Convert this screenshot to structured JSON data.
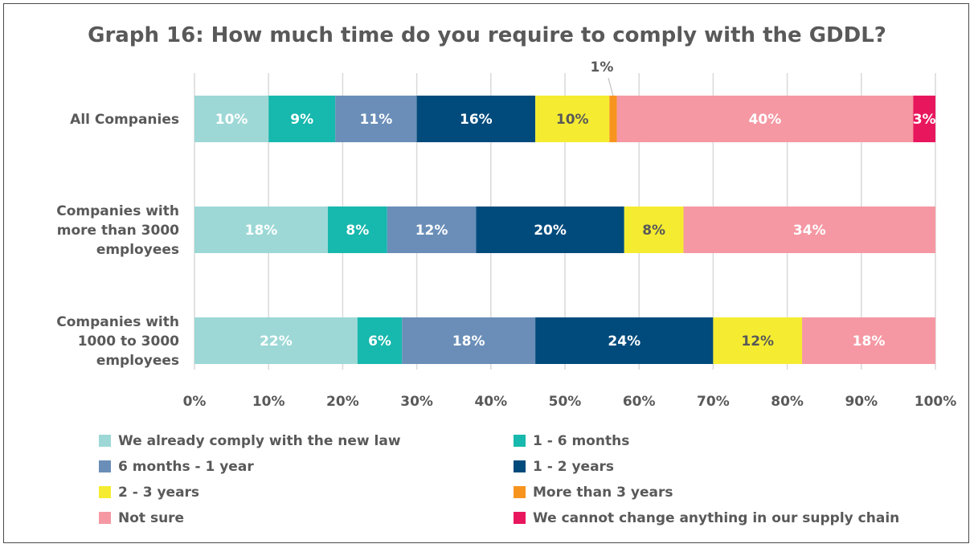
{
  "chart_data": {
    "type": "bar",
    "orientation": "horizontal",
    "stacked": true,
    "title": "Graph 16: How much time do you require to comply with the GDDL?",
    "categories": [
      "All Companies",
      "Companies with more than 3000 employees",
      "Companies with 1000 to 3000 employees"
    ],
    "series": [
      {
        "name": "We already comply with the new law",
        "color": "#9dd8d6",
        "label_color": "#ffffff",
        "values": [
          10,
          18,
          22
        ]
      },
      {
        "name": "1 - 6 months",
        "color": "#17b8ad",
        "label_color": "#ffffff",
        "values": [
          9,
          8,
          6
        ]
      },
      {
        "name": "6 months - 1 year",
        "color": "#6a8eb8",
        "label_color": "#ffffff",
        "values": [
          11,
          12,
          18
        ]
      },
      {
        "name": "1 - 2 years",
        "color": "#004b7c",
        "label_color": "#ffffff",
        "values": [
          16,
          20,
          24
        ]
      },
      {
        "name": "2 - 3 years",
        "color": "#f5ec31",
        "label_color": "#595959",
        "values": [
          10,
          8,
          12
        ]
      },
      {
        "name": "More than 3 years",
        "color": "#f7941e",
        "label_color": "#595959",
        "values": [
          1,
          0,
          0
        ]
      },
      {
        "name": "Not sure",
        "color": "#f598a3",
        "label_color": "#ffffff",
        "values": [
          40,
          34,
          18
        ]
      },
      {
        "name": "We cannot change anything in our supply chain",
        "color": "#e8175d",
        "label_color": "#ffffff",
        "values": [
          3,
          0,
          0
        ]
      }
    ],
    "callout": {
      "text": "1%",
      "category_index": 0,
      "series_index": 5
    },
    "xlim": [
      0,
      100
    ],
    "xticks": [
      "0%",
      "10%",
      "20%",
      "30%",
      "40%",
      "50%",
      "60%",
      "70%",
      "80%",
      "90%",
      "100%"
    ],
    "grid": true,
    "legend_position": "bottom"
  }
}
